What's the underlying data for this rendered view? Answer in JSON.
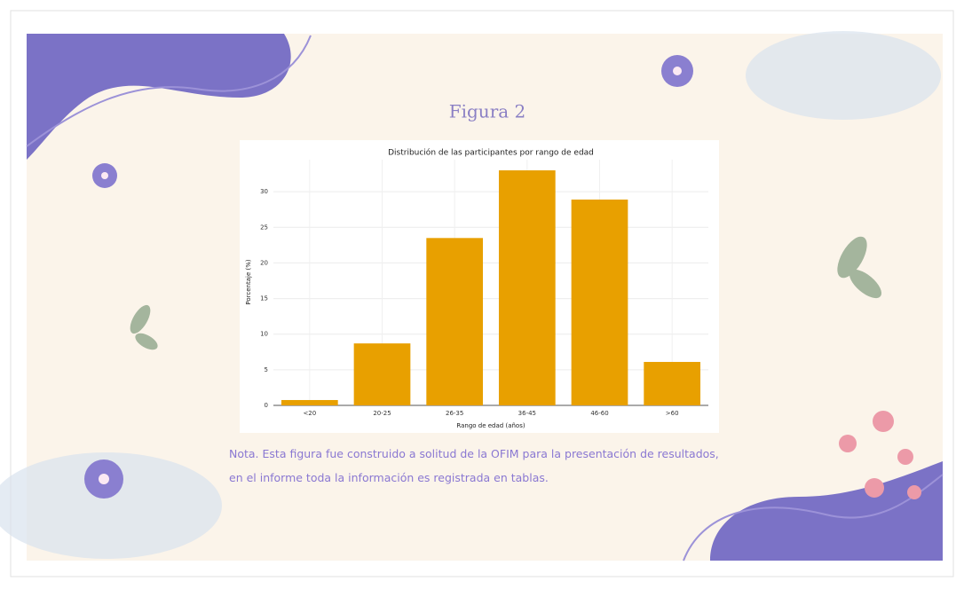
{
  "figure_label": "Figura 2",
  "note": "Nota. Esta figura fue construido a solitud de la OFIM para la presentación de resultados, en el informe toda la información es registrada en tablas.",
  "chart_data": {
    "type": "bar",
    "title": "Distribución de las participantes por rango de edad",
    "x_label": "Rango de edad (años)",
    "y_label": "Porcentaje (%)",
    "categories": [
      "<20",
      "20-25",
      "26-35",
      "36-45",
      "46-60",
      ">60"
    ],
    "values": [
      0.75,
      8.7,
      23.5,
      33,
      28.9,
      6.1
    ],
    "color": "#e8a000",
    "ylim": [
      0,
      34.5
    ],
    "yticks": [
      0,
      5,
      10,
      15,
      20,
      25,
      30
    ],
    "grid": true
  }
}
